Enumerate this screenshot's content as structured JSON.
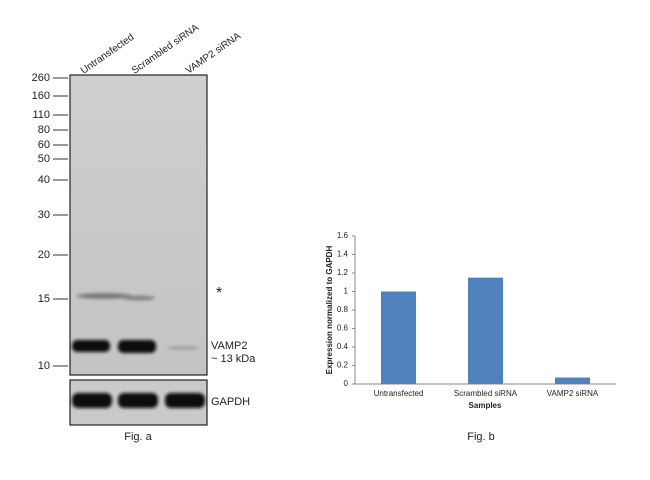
{
  "blot": {
    "lanes": [
      "Untransfected",
      "Scrambled siRNA",
      "VAMP2 siRNA"
    ],
    "markers": [
      "260",
      "160",
      "110",
      "80",
      "60",
      "50",
      "40",
      "30",
      "20",
      "15",
      "10"
    ],
    "asterisk": "*",
    "target": "VAMP2",
    "target_size": "~ 13 kDa",
    "control": "GAPDH",
    "caption": "Fig. a"
  },
  "chart_data": {
    "type": "bar",
    "caption": "Fig. b",
    "x_label": "Samples",
    "y_label": "Expression normalized to GAPDH",
    "categories": [
      "Untransfected",
      "Scrambled siRNA",
      "VAMP2 siRNA"
    ],
    "values": [
      1.0,
      1.15,
      0.07
    ],
    "color": "#4f81bd",
    "ylim": [
      0,
      1.6
    ],
    "yticks": [
      0,
      0.2,
      0.4,
      0.6,
      0.8,
      1,
      1.2,
      1.4,
      1.6
    ],
    "grid": false
  }
}
